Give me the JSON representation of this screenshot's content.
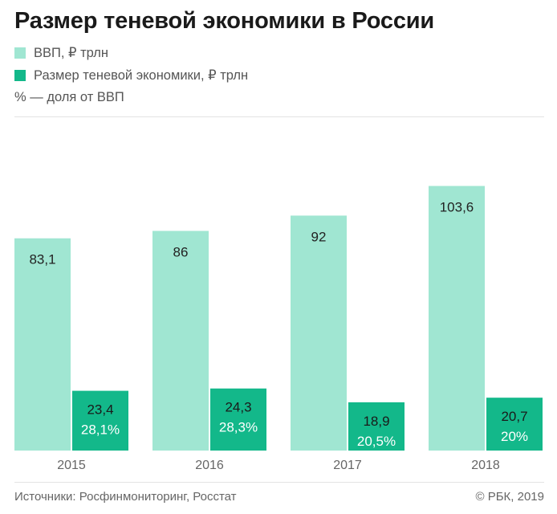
{
  "header": {
    "title": "Размер теневой экономики в России"
  },
  "legend": {
    "items": [
      {
        "label": "ВВП, ₽ трлн",
        "color": "#a0e6d2"
      },
      {
        "label": "Размер теневой экономики, ₽ трлн",
        "color": "#13b88a"
      }
    ],
    "note": "% — доля от ВВП"
  },
  "chart_data": {
    "type": "bar",
    "categories": [
      "2015",
      "2016",
      "2017",
      "2018"
    ],
    "series": [
      {
        "name": "ВВП, ₽ трлн",
        "values": [
          83.1,
          86,
          92,
          103.6
        ],
        "labels": [
          "83,1",
          "86",
          "92",
          "103,6"
        ],
        "color": "#a0e6d2"
      },
      {
        "name": "Размер теневой экономики, ₽ трлн",
        "values": [
          23.4,
          24.3,
          18.9,
          20.7
        ],
        "labels": [
          "23,4",
          "24,3",
          "18,9",
          "20,7"
        ],
        "share_labels": [
          "28,1%",
          "28,3%",
          "20,5%",
          "20%"
        ],
        "color": "#13b88a"
      }
    ],
    "title": "Размер теневой экономики в России",
    "ylim": [
      0,
      108
    ]
  },
  "footer": {
    "source": "Источники: Росфинмониторинг, Росстат",
    "copyright": "© РБК, 2019"
  }
}
